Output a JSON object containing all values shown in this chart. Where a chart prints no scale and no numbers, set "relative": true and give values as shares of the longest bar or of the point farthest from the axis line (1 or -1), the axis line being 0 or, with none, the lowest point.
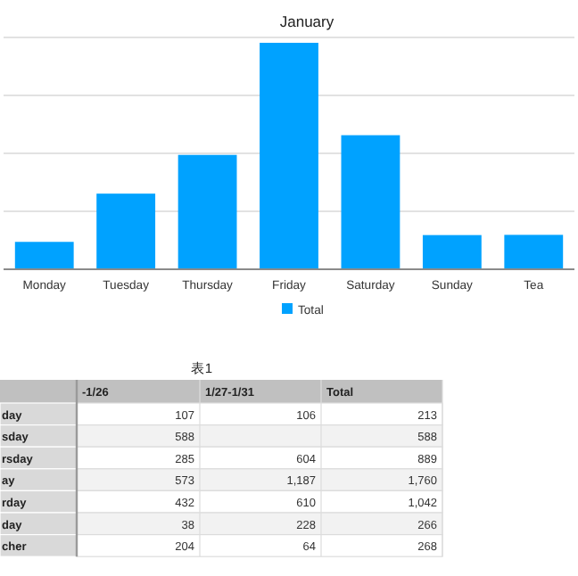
{
  "chart_data": [
    {
      "type": "bar",
      "title": "January",
      "categories": [
        "Monday",
        "Tuesday",
        "Thursday",
        "Friday",
        "Saturday",
        "Sunday",
        "Tea"
      ],
      "series": [
        {
          "name": "Total",
          "color": "#00a2ff",
          "values": [
            0.121,
            0.334,
            0.505,
            1,
            0.592,
            0.151,
            0.152
          ]
        }
      ],
      "relative": true,
      "grid": "y",
      "legend": "bottom",
      "tick_labels": "x"
    },
    {
      "type": "other",
      "title": "表1",
      "categories": [
        "-1/26",
        "1/27-1/31",
        "Total"
      ],
      "y_categories": [
        "day",
        "sday",
        "rsday",
        "ay",
        "rday",
        "day",
        "cher"
      ],
      "cell_labels": [
        [
          "107",
          "106",
          "213"
        ],
        [
          "588",
          null,
          "588"
        ],
        [
          "285",
          "604",
          "889"
        ],
        [
          "573",
          "1,187",
          "1,760"
        ],
        [
          "432",
          "610",
          "1,042"
        ],
        [
          "38",
          "228",
          "266"
        ],
        [
          "204",
          "64",
          "268"
        ]
      ]
    }
  ]
}
